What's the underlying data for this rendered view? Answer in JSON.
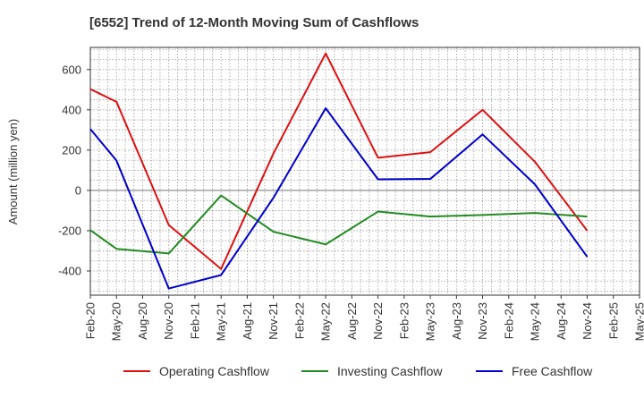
{
  "chart_data": {
    "type": "line",
    "title": "[6552]  Trend of 12-Month Moving Sum of Cashflows",
    "ylabel": "Amount (million yen)",
    "xlabel": "",
    "ylim": [
      -520,
      710
    ],
    "yticks": [
      -400,
      -200,
      0,
      200,
      400,
      600
    ],
    "categories": [
      "Feb-20",
      "May-20",
      "Aug-20",
      "Nov-20",
      "Feb-21",
      "May-21",
      "Aug-21",
      "Nov-21",
      "Feb-22",
      "May-22",
      "Aug-22",
      "Nov-22",
      "Feb-23",
      "May-23",
      "Aug-23",
      "Nov-23",
      "Feb-24",
      "May-24",
      "Aug-24",
      "Nov-24",
      "Feb-25",
      "May-25"
    ],
    "grid": true,
    "legend_position": "bottom",
    "series": [
      {
        "name": "Operating Cashflow",
        "color": "#dd1111",
        "values": [
          503,
          440,
          null,
          -172,
          null,
          -390,
          null,
          183,
          null,
          680,
          null,
          162,
          null,
          190,
          null,
          400,
          null,
          142,
          null,
          -200,
          null,
          null
        ]
      },
      {
        "name": "Investing Cashflow",
        "color": "#228b22",
        "values": [
          -197,
          -290,
          null,
          -313,
          null,
          -25,
          null,
          -205,
          null,
          -268,
          null,
          -105,
          null,
          -130,
          null,
          -122,
          null,
          -112,
          null,
          -130,
          null,
          null
        ]
      },
      {
        "name": "Free Cashflow",
        "color": "#0000cc",
        "values": [
          305,
          148,
          null,
          -487,
          null,
          -420,
          null,
          -37,
          null,
          408,
          null,
          55,
          null,
          57,
          null,
          278,
          null,
          30,
          null,
          -330,
          null,
          null
        ]
      }
    ]
  }
}
